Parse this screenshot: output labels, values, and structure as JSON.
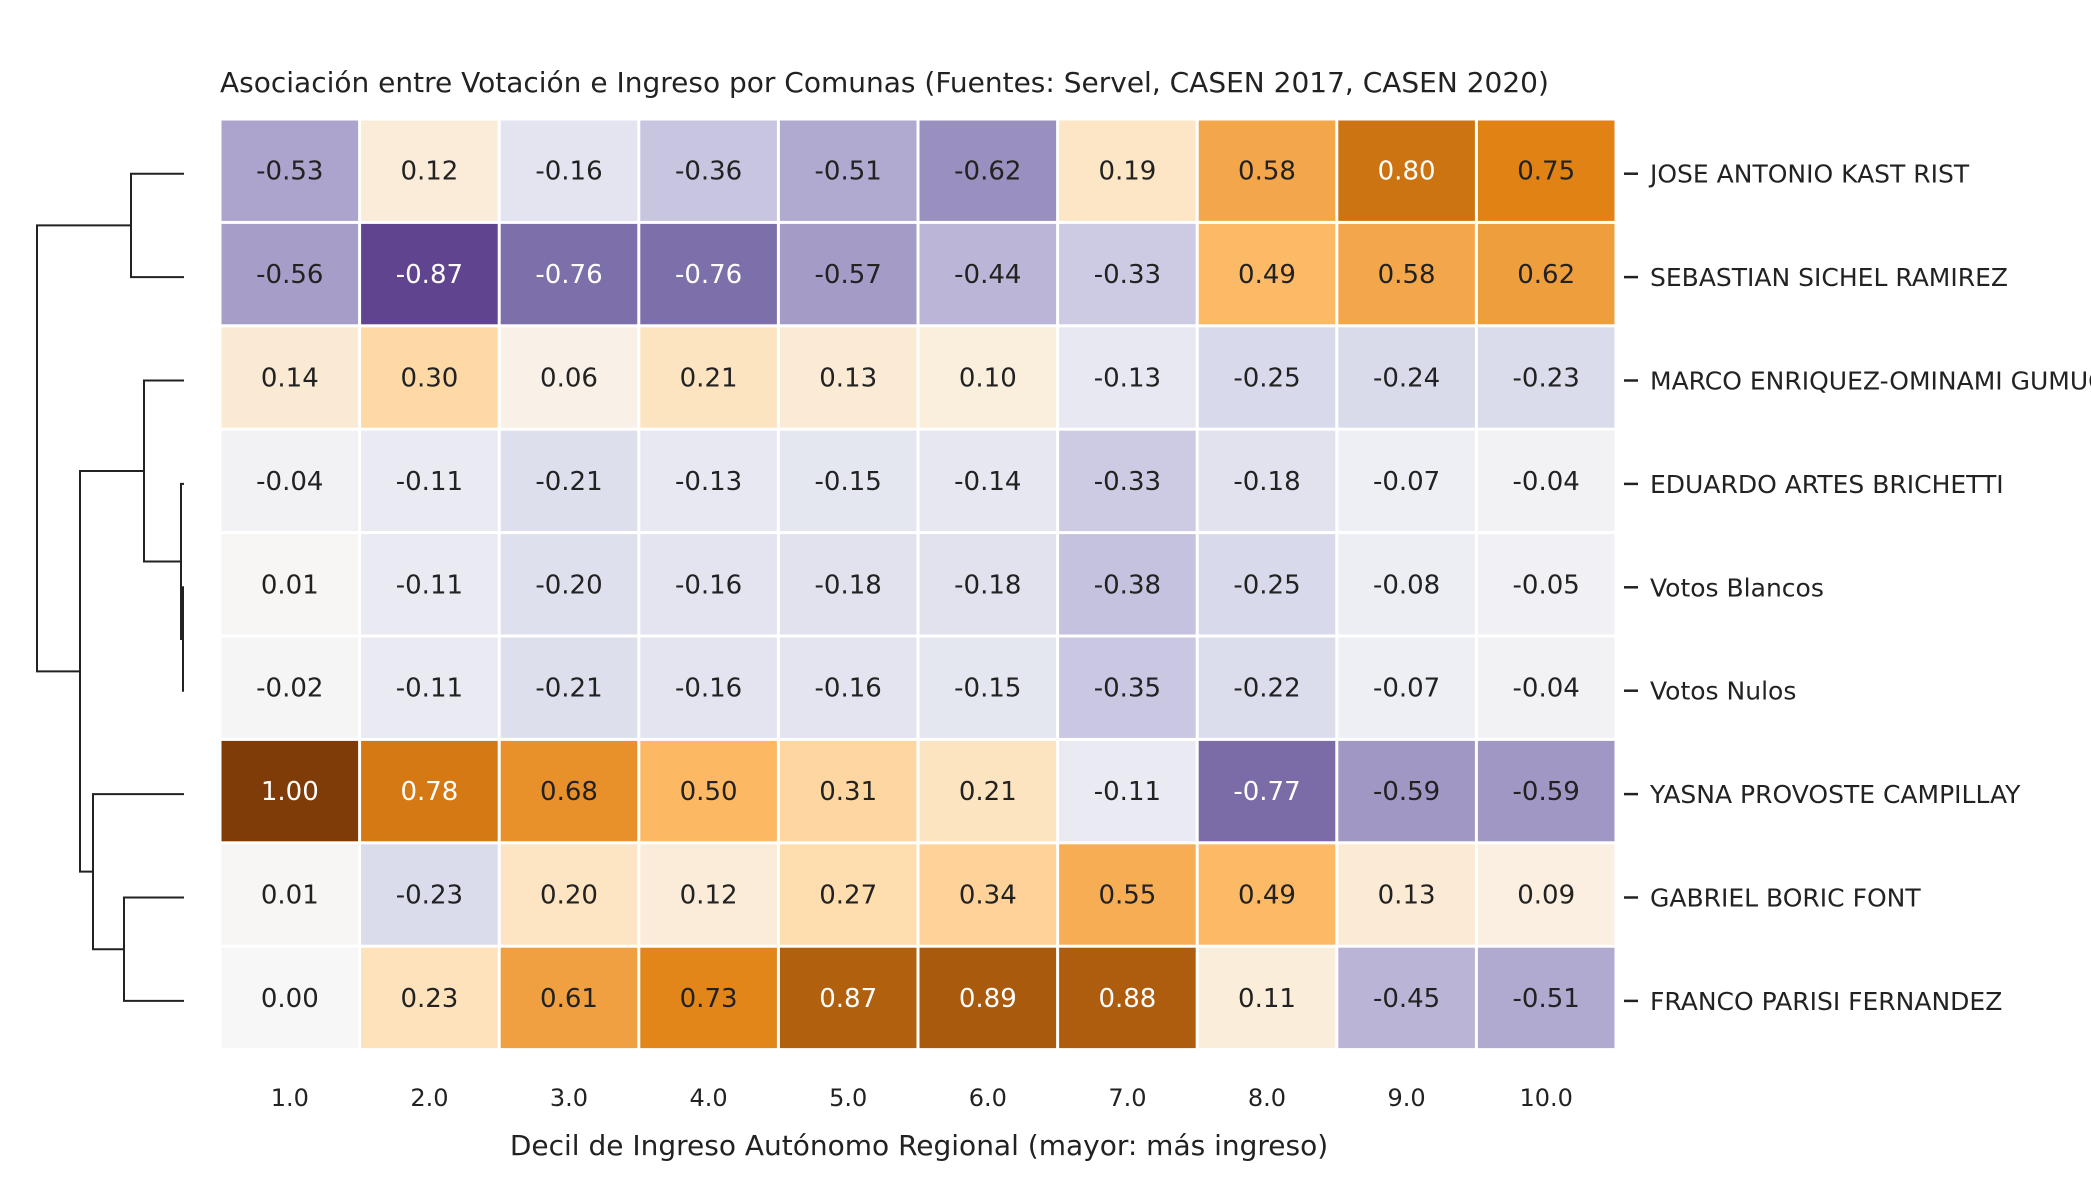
{
  "chart_data": {
    "type": "heatmap",
    "title": "Asociación entre Votación e Ingreso por Comunas (Fuentes: Servel, CASEN 2017, CASEN 2020)",
    "xlabel": "Decil de Ingreso Autónomo Regional (mayor: más ingreso)",
    "ylabel": "",
    "x_tick_labels": [
      "1.0",
      "2.0",
      "3.0",
      "4.0",
      "5.0",
      "6.0",
      "7.0",
      "8.0",
      "9.0",
      "10.0"
    ],
    "rows": [
      {
        "label": "JOSE ANTONIO KAST RIST",
        "values": [
          -0.53,
          0.12,
          -0.16,
          -0.36,
          -0.51,
          -0.62,
          0.19,
          0.58,
          0.8,
          0.75
        ]
      },
      {
        "label": "SEBASTIAN SICHEL RAMIREZ",
        "values": [
          -0.56,
          -0.87,
          -0.76,
          -0.76,
          -0.57,
          -0.44,
          -0.33,
          0.49,
          0.58,
          0.62
        ]
      },
      {
        "label": "MARCO ENRIQUEZ-OMINAMI GUMUCIO",
        "values": [
          0.14,
          0.3,
          0.06,
          0.21,
          0.13,
          0.1,
          -0.13,
          -0.25,
          -0.24,
          -0.23
        ]
      },
      {
        "label": "EDUARDO ARTES BRICHETTI",
        "values": [
          -0.04,
          -0.11,
          -0.21,
          -0.13,
          -0.15,
          -0.14,
          -0.33,
          -0.18,
          -0.07,
          -0.04
        ]
      },
      {
        "label": "Votos Blancos",
        "values": [
          0.01,
          -0.11,
          -0.2,
          -0.16,
          -0.18,
          -0.18,
          -0.38,
          -0.25,
          -0.08,
          -0.05
        ]
      },
      {
        "label": "Votos Nulos",
        "values": [
          -0.02,
          -0.11,
          -0.21,
          -0.16,
          -0.16,
          -0.15,
          -0.35,
          -0.22,
          -0.07,
          -0.04
        ]
      },
      {
        "label": "YASNA PROVOSTE CAMPILLAY",
        "values": [
          1.0,
          0.78,
          0.68,
          0.5,
          0.31,
          0.21,
          -0.11,
          -0.77,
          -0.59,
          -0.59
        ]
      },
      {
        "label": "GABRIEL BORIC FONT",
        "values": [
          0.01,
          -0.23,
          0.2,
          0.12,
          0.27,
          0.34,
          0.55,
          0.49,
          0.13,
          0.09
        ]
      },
      {
        "label": "FRANCO PARISI FERNANDEZ",
        "values": [
          -0.0,
          0.23,
          0.61,
          0.73,
          0.87,
          0.89,
          0.88,
          0.11,
          -0.45,
          -0.51
        ]
      }
    ],
    "color_scale": {
      "colormap": "PuOr diverging",
      "vmin": -1.0,
      "vmax": 1.0,
      "negative_color": "#3f1170",
      "neutral_color": "#f7f7f7",
      "positive_color": "#7f3b08"
    },
    "row_dendrogram": true,
    "colorbar": false
  }
}
